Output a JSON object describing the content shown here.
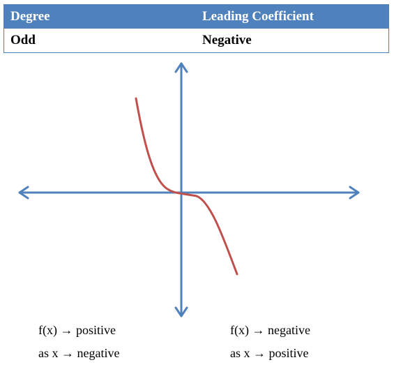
{
  "table": {
    "headers": [
      "Degree",
      "Leading Coefficient"
    ],
    "row": [
      "Odd",
      "Negative"
    ]
  },
  "colors": {
    "header_bg": "#4f81bd",
    "axis": "#4f81bd",
    "curve": "#c0504d"
  },
  "notes": {
    "left_line1": "f(x) → positive",
    "left_line2": "as x → negative",
    "right_line1": "f(x) → negative",
    "right_line2": "as x → positive"
  }
}
